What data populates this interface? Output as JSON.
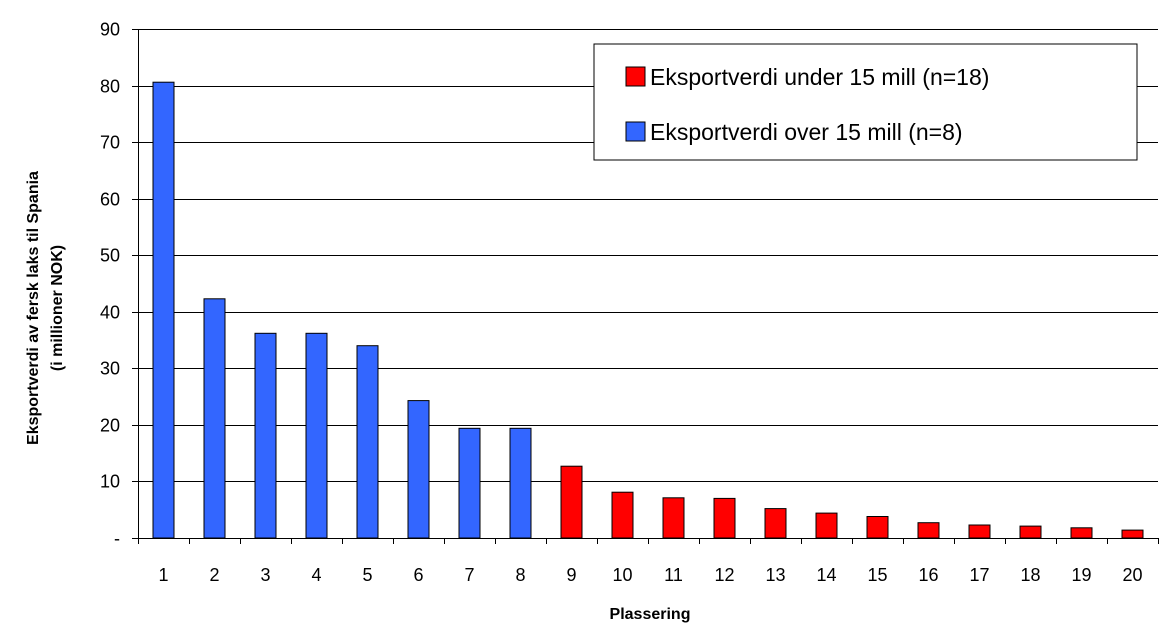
{
  "chart_data": {
    "type": "bar",
    "title": "",
    "xlabel": "Plassering",
    "ylabel_line1": "Eksportverdi av fersk laks til Spania",
    "ylabel_line2": "(i millioner NOK)",
    "ylim": [
      0,
      90
    ],
    "yticks": [
      0,
      10,
      20,
      30,
      40,
      50,
      60,
      70,
      80,
      90
    ],
    "ytick_labels": [
      "-",
      "10",
      "20",
      "30",
      "40",
      "50",
      "60",
      "70",
      "80",
      "90"
    ],
    "grid": true,
    "legend_position": "top-right",
    "categories": [
      "1",
      "2",
      "3",
      "4",
      "5",
      "6",
      "7",
      "8",
      "9",
      "10",
      "11",
      "12",
      "13",
      "14",
      "15",
      "16",
      "17",
      "18",
      "19",
      "20"
    ],
    "values": [
      80.6,
      42.3,
      36.2,
      36.2,
      34.0,
      24.3,
      19.4,
      19.4,
      12.7,
      8.1,
      7.1,
      7.0,
      5.2,
      4.4,
      3.8,
      2.7,
      2.3,
      2.1,
      1.8,
      1.4
    ],
    "groups": [
      "over",
      "over",
      "over",
      "over",
      "over",
      "over",
      "over",
      "over",
      "under",
      "under",
      "under",
      "under",
      "under",
      "under",
      "under",
      "under",
      "under",
      "under",
      "under",
      "under"
    ],
    "series": [
      {
        "key": "under",
        "name": "Eksportverdi under 15 mill (n=18)",
        "color": "#ff0000"
      },
      {
        "key": "over",
        "name": "Eksportverdi over 15 mill (n=8)",
        "color": "#3366ff"
      }
    ]
  }
}
